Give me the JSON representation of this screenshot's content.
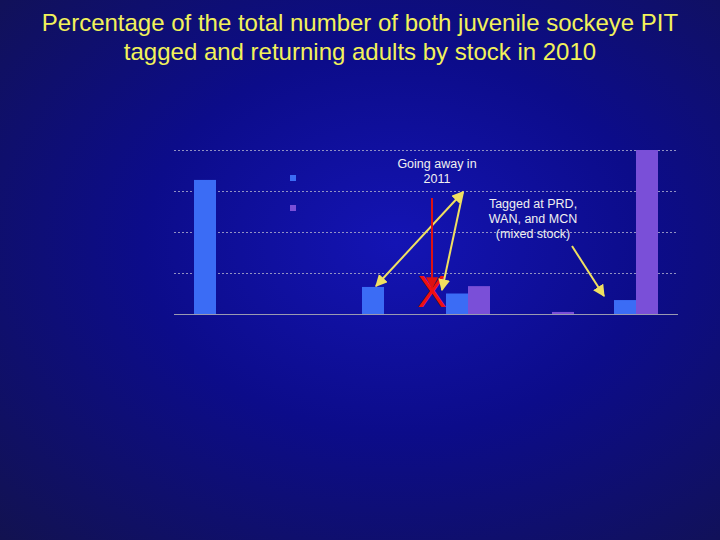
{
  "chart_data": {
    "type": "bar",
    "title": "Percentage of the total number of both juvenile sockeye PIT tagged and returning adults by stock in 2010",
    "categories": [
      null,
      null,
      null,
      null,
      null,
      null
    ],
    "series": [
      {
        "color": "#3b6cf5",
        "values": [
          3.27,
          0,
          0.66,
          0.5,
          0,
          0.34
        ]
      },
      {
        "color": "#7a4fd8",
        "values": [
          0,
          0,
          0,
          0.68,
          0.05,
          4.0
        ]
      }
    ],
    "ylim": [
      0,
      4
    ],
    "yticks": [
      0,
      1,
      2,
      3,
      4
    ],
    "grid": true,
    "tick_labels": false,
    "legend": "top-left",
    "annotations": [
      {
        "text": "Going away in 2011"
      },
      {
        "text": "Tagged at PRD, WAN, and MCN (mixed stock)"
      },
      {
        "text": "X"
      }
    ]
  }
}
